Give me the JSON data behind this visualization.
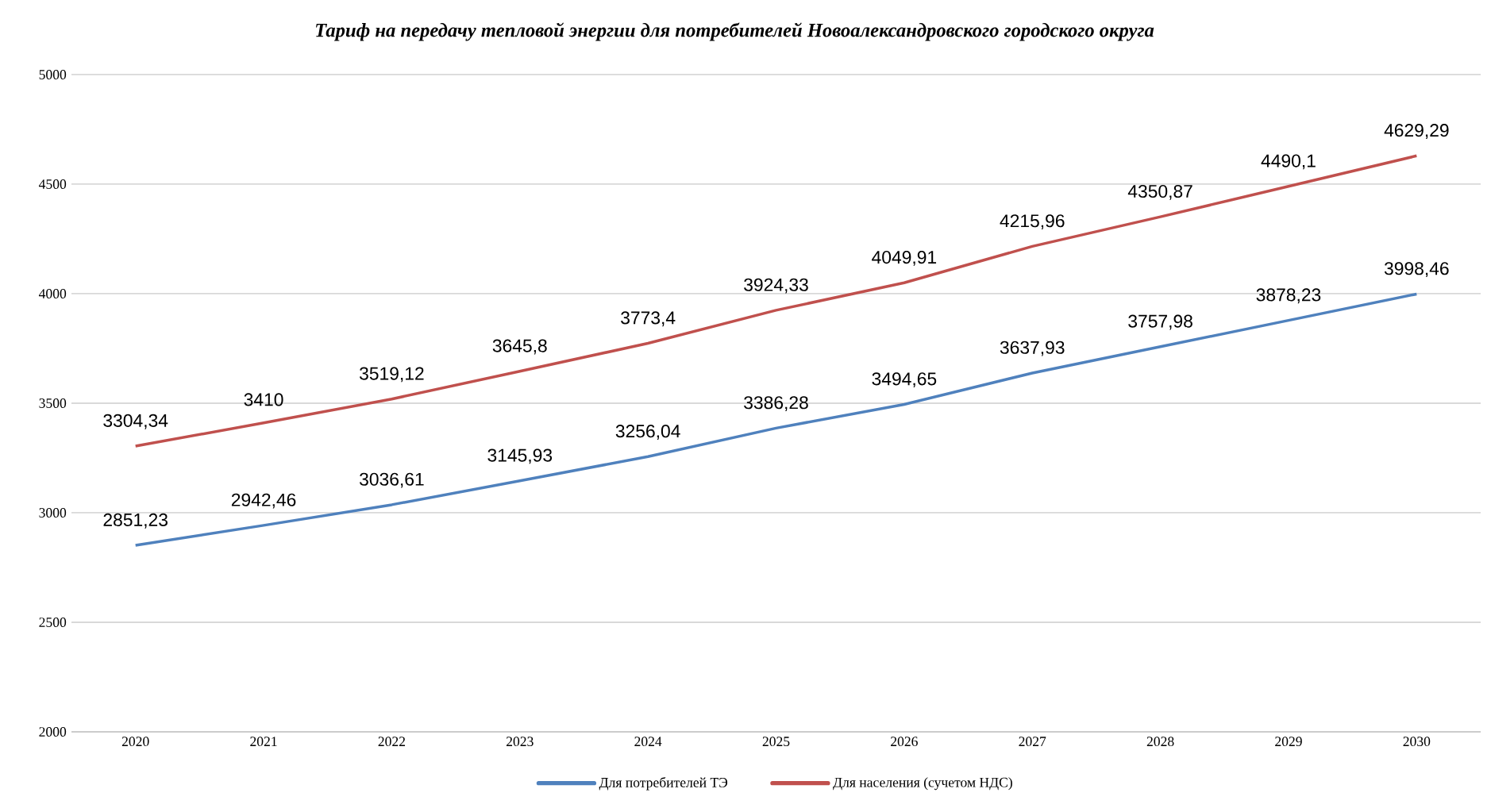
{
  "chart_data": {
    "type": "line",
    "title": "Тариф на передачу тепловой энергии для потребителей Новоалександровского городского округа",
    "categories": [
      "2020",
      "2021",
      "2022",
      "2023",
      "2024",
      "2025",
      "2026",
      "2027",
      "2028",
      "2029",
      "2030"
    ],
    "series": [
      {
        "name": "Для потребителей  ТЭ",
        "color": "#4f81bd",
        "values": [
          2851.23,
          2942.46,
          3036.61,
          3145.93,
          3256.04,
          3386.28,
          3494.65,
          3637.93,
          3757.98,
          3878.23,
          3998.46
        ],
        "value_labels": [
          "2851,23",
          "2942,46",
          "3036,61",
          "3145,93",
          "3256,04",
          "3386,28",
          "3494,65",
          "3637,93",
          "3757,98",
          "3878,23",
          "3998,46"
        ]
      },
      {
        "name": "Для населения  (сучетом НДС)",
        "color": "#c0504d",
        "values": [
          3304.34,
          3410,
          3519.12,
          3645.8,
          3773.4,
          3924.33,
          4049.91,
          4215.96,
          4350.87,
          4490.1,
          4629.29
        ],
        "value_labels": [
          "3304,34",
          "3410",
          "3519,12",
          "3645,8",
          "3773,4",
          "3924,33",
          "4049,91",
          "4215,96",
          "4350,87",
          "4490,1",
          "4629,29"
        ]
      }
    ],
    "ylim": [
      2000,
      5000
    ],
    "yticks": [
      2000,
      2500,
      3000,
      3500,
      4000,
      4500,
      5000
    ],
    "grid": "y",
    "legend": "bottom",
    "marker": "none",
    "line_style": "solid"
  }
}
